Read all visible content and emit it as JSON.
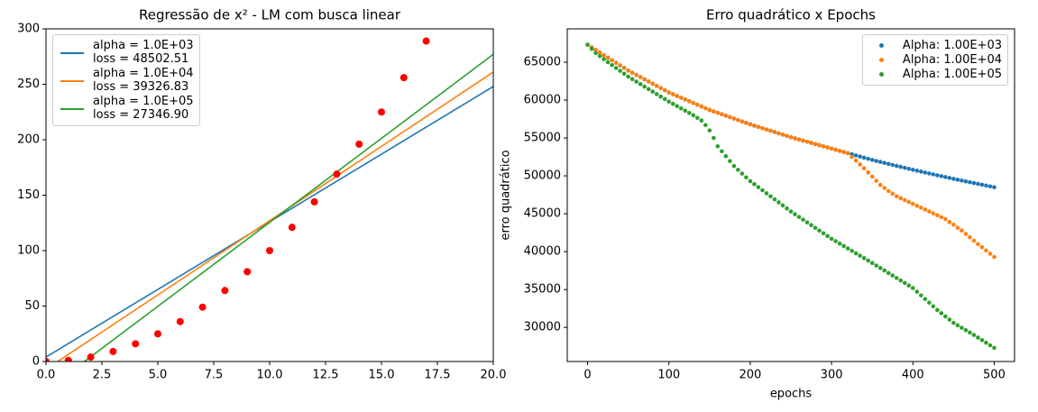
{
  "chart_data": [
    {
      "type": "line",
      "title": "Regressão de x² - LM com busca linear",
      "series": [
        {
          "name": "alpha = 1.0E+03\nloss = 48502.51",
          "color": "#1f77b4",
          "x": [
            0,
            20
          ],
          "values": [
            4,
            248
          ]
        },
        {
          "name": "alpha = 1.0E+04\nloss = 39326.83",
          "color": "#ff7f0e",
          "x": [
            0,
            20
          ],
          "values": [
            -7,
            261
          ]
        },
        {
          "name": "alpha = 1.0E+05\nloss = 27346.90",
          "color": "#2ca02c",
          "x": [
            0,
            20
          ],
          "values": [
            -26,
            277
          ]
        }
      ],
      "scatter": {
        "color": "#ff0000",
        "x": [
          0,
          1,
          2,
          3,
          4,
          5,
          6,
          7,
          8,
          9,
          10,
          11,
          12,
          13,
          14,
          15,
          16,
          17
        ],
        "values": [
          0,
          1,
          4,
          9,
          16,
          25,
          36,
          49,
          64,
          81,
          100,
          121,
          144,
          169,
          196,
          225,
          256,
          289
        ]
      },
      "xlim": [
        0,
        20
      ],
      "ylim": [
        0,
        300
      ],
      "xticks": [
        {
          "value": 0,
          "label": "0.0"
        },
        2.5,
        {
          "value": 5,
          "label": "5.0"
        },
        7.5,
        {
          "value": 10,
          "label": "10.0"
        },
        12.5,
        {
          "value": 15,
          "label": "15.0"
        },
        17.5,
        {
          "value": 20,
          "label": "20.0"
        }
      ],
      "yticks": [
        0,
        50,
        100,
        150,
        200,
        250,
        300
      ],
      "legend": "upper left"
    },
    {
      "type": "scatter",
      "title": "Erro quadrático x Epochs",
      "xlabel": "epochs",
      "ylabel": "erro quadrático",
      "x": [
        0,
        5,
        10,
        15,
        20,
        25,
        30,
        35,
        40,
        45,
        50,
        55,
        60,
        65,
        70,
        75,
        80,
        85,
        90,
        95,
        100,
        105,
        110,
        115,
        120,
        125,
        130,
        135,
        140,
        145,
        150,
        155,
        160,
        165,
        170,
        175,
        180,
        185,
        190,
        195,
        200,
        205,
        210,
        215,
        220,
        225,
        230,
        235,
        240,
        245,
        250,
        255,
        260,
        265,
        270,
        275,
        280,
        285,
        290,
        295,
        300,
        305,
        310,
        315,
        320,
        325,
        330,
        335,
        340,
        345,
        350,
        355,
        360,
        365,
        370,
        375,
        380,
        385,
        390,
        395,
        400,
        405,
        410,
        415,
        420,
        425,
        430,
        435,
        440,
        445,
        450,
        455,
        460,
        465,
        470,
        475,
        480,
        485,
        490,
        495,
        500
      ],
      "series": [
        {
          "name": "Alpha: 1.00E+03",
          "color": "#1f77b4",
          "values": [
            67300,
            66960,
            66620,
            66280,
            65940,
            65600,
            65260,
            64920,
            64580,
            64240,
            63900,
            63610,
            63320,
            63030,
            62740,
            62450,
            62160,
            61870,
            61580,
            61290,
            61000,
            60770,
            60540,
            60310,
            60080,
            59850,
            59620,
            59390,
            59160,
            58930,
            58700,
            58510,
            58320,
            58130,
            57940,
            57750,
            57560,
            57370,
            57180,
            56990,
            56800,
            56630,
            56460,
            56290,
            56120,
            55950,
            55780,
            55610,
            55440,
            55270,
            55100,
            54950,
            54800,
            54650,
            54500,
            54350,
            54200,
            54050,
            53900,
            53750,
            53600,
            53450,
            53300,
            53150,
            53000,
            52850,
            52700,
            52550,
            52400,
            52250,
            52100,
            51970,
            51840,
            51710,
            51580,
            51450,
            51320,
            51190,
            51060,
            50930,
            50800,
            50680,
            50560,
            50440,
            50320,
            50200,
            50080,
            49960,
            49840,
            49720,
            49600,
            49490,
            49380,
            49270,
            49160,
            49050,
            48940,
            48830,
            48720,
            48610,
            48500
          ]
        },
        {
          "name": "Alpha: 1.00E+04",
          "color": "#ff7f0e",
          "values": [
            67300,
            66960,
            66620,
            66280,
            65940,
            65600,
            65260,
            64920,
            64580,
            64240,
            63900,
            63610,
            63320,
            63030,
            62740,
            62450,
            62160,
            61870,
            61580,
            61290,
            61000,
            60770,
            60540,
            60310,
            60080,
            59850,
            59620,
            59390,
            59160,
            58930,
            58700,
            58510,
            58320,
            58130,
            57940,
            57750,
            57560,
            57370,
            57180,
            56990,
            56800,
            56630,
            56460,
            56290,
            56120,
            55950,
            55780,
            55610,
            55440,
            55270,
            55100,
            54950,
            54800,
            54650,
            54500,
            54350,
            54200,
            54050,
            53900,
            53750,
            53600,
            53450,
            53300,
            53150,
            53000,
            52500,
            52000,
            51500,
            51000,
            50450,
            49900,
            49350,
            48800,
            48400,
            48000,
            47650,
            47300,
            47050,
            46800,
            46550,
            46300,
            46050,
            45800,
            45550,
            45300,
            45050,
            44800,
            44550,
            44300,
            43900,
            43550,
            43150,
            42800,
            42350,
            41900,
            41450,
            41000,
            40580,
            40150,
            39730,
            39300
          ]
        },
        {
          "name": "Alpha: 1.00E+05",
          "color": "#2ca02c",
          "values": [
            67300,
            66750,
            66200,
            65800,
            65400,
            65000,
            64620,
            64240,
            63860,
            63480,
            63100,
            62770,
            62440,
            62110,
            61780,
            61450,
            61120,
            60790,
            60460,
            60130,
            59800,
            59500,
            59200,
            58900,
            58600,
            58300,
            58000,
            57650,
            57300,
            56700,
            56000,
            55000,
            53900,
            53250,
            52600,
            51950,
            51300,
            50800,
            50300,
            49800,
            49300,
            48900,
            48500,
            48100,
            47700,
            47300,
            46900,
            46500,
            46100,
            45700,
            45300,
            44940,
            44580,
            44220,
            43860,
            43500,
            43140,
            42780,
            42420,
            42060,
            41700,
            41380,
            41060,
            40740,
            40420,
            40100,
            39780,
            39460,
            39140,
            38820,
            38500,
            38170,
            37840,
            37510,
            37180,
            36850,
            36520,
            36190,
            35860,
            35530,
            35200,
            34720,
            34230,
            33750,
            33270,
            32780,
            32300,
            31880,
            31450,
            31030,
            30600,
            30280,
            29960,
            29640,
            29320,
            29000,
            28660,
            28320,
            27980,
            27640,
            27300
          ]
        }
      ],
      "xlim": [
        -25,
        525
      ],
      "ylim": [
        25500,
        69400
      ],
      "xticks": [
        0,
        100,
        200,
        300,
        400,
        500
      ],
      "yticks": [
        30000,
        35000,
        40000,
        45000,
        50000,
        55000,
        60000,
        65000
      ],
      "legend": "upper right"
    }
  ]
}
